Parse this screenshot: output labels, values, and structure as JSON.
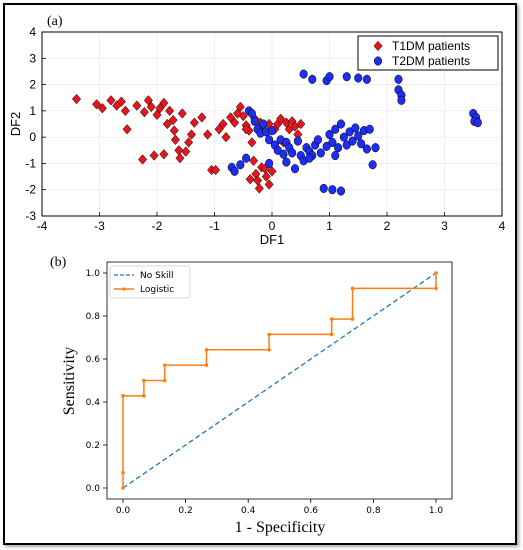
{
  "chart_data": [
    {
      "panel_label": "(a)",
      "type": "scatter",
      "xlabel": "DF1",
      "ylabel": "DF2",
      "xlim": [
        -4,
        4
      ],
      "ylim": [
        -3,
        4
      ],
      "xticks": [
        -4,
        -3,
        -2,
        -1,
        0,
        1,
        2,
        3,
        4
      ],
      "yticks": [
        -3,
        -2,
        -1,
        0,
        1,
        2,
        3,
        4
      ],
      "legend_position": "top-right",
      "series": [
        {
          "name": "T1DM patients",
          "marker": "diamond",
          "color": "#e8141c",
          "points": [
            [
              -3.4,
              1.45
            ],
            [
              -3.05,
              1.25
            ],
            [
              -2.95,
              1.1
            ],
            [
              -2.8,
              1.4
            ],
            [
              -2.7,
              1.2
            ],
            [
              -2.62,
              1.35
            ],
            [
              -2.55,
              1.0
            ],
            [
              -2.52,
              0.3
            ],
            [
              -2.35,
              1.2
            ],
            [
              -2.22,
              0.95
            ],
            [
              -2.15,
              1.4
            ],
            [
              -2.1,
              1.15
            ],
            [
              -2.0,
              0.85
            ],
            [
              -1.95,
              1.1
            ],
            [
              -1.88,
              1.3
            ],
            [
              -1.82,
              0.5
            ],
            [
              -1.78,
              1.0
            ],
            [
              -1.72,
              0.65
            ],
            [
              -1.7,
              0.25
            ],
            [
              -1.68,
              -0.1
            ],
            [
              -1.62,
              -0.5
            ],
            [
              -1.6,
              -0.8
            ],
            [
              -1.56,
              0.9
            ],
            [
              -1.5,
              -0.55
            ],
            [
              -1.45,
              -0.2
            ],
            [
              -1.4,
              0.1
            ],
            [
              -1.88,
              -0.65
            ],
            [
              -2.05,
              -0.7
            ],
            [
              -2.25,
              -0.85
            ],
            [
              -1.35,
              0.55
            ],
            [
              -1.22,
              0.75
            ],
            [
              -1.12,
              0.1
            ],
            [
              -1.05,
              -1.25
            ],
            [
              -0.98,
              -1.25
            ],
            [
              -0.92,
              0.3
            ],
            [
              -0.85,
              0.5
            ],
            [
              -0.8,
              0.0
            ],
            [
              -0.72,
              0.75
            ],
            [
              -0.65,
              0.55
            ],
            [
              -0.6,
              0.9
            ],
            [
              -0.55,
              1.15
            ],
            [
              -0.5,
              0.8
            ],
            [
              -0.45,
              0.45
            ],
            [
              -0.4,
              0.25
            ],
            [
              -0.35,
              -0.2
            ],
            [
              -0.32,
              -0.9
            ],
            [
              -0.3,
              0.7
            ],
            [
              -0.28,
              -1.4
            ],
            [
              -0.25,
              -1.65
            ],
            [
              -0.22,
              -1.95
            ],
            [
              -0.18,
              -1.15
            ],
            [
              -0.15,
              0.45
            ],
            [
              -0.1,
              -1.5
            ],
            [
              -0.05,
              -1.8
            ],
            [
              0.0,
              -1.3
            ],
            [
              0.05,
              0.3
            ],
            [
              0.1,
              0.5
            ],
            [
              0.15,
              0.7
            ],
            [
              0.2,
              -0.2
            ],
            [
              0.25,
              0.55
            ],
            [
              0.3,
              0.3
            ],
            [
              0.35,
              0.6
            ],
            [
              0.4,
              0.4
            ],
            [
              0.45,
              0.1
            ],
            [
              0.5,
              0.5
            ],
            [
              -0.05,
              0.5
            ],
            [
              -0.2,
              0.55
            ],
            [
              -0.45,
              0.3
            ],
            [
              -0.12,
              -1.2
            ],
            [
              -0.38,
              -1.6
            ]
          ]
        },
        {
          "name": "T2DM patients",
          "marker": "circle",
          "color": "#1e2ef0",
          "points": [
            [
              0.55,
              2.4
            ],
            [
              0.7,
              2.2
            ],
            [
              0.95,
              2.15
            ],
            [
              1.0,
              2.3
            ],
            [
              1.3,
              2.3
            ],
            [
              1.5,
              2.25
            ],
            [
              1.65,
              2.2
            ],
            [
              2.2,
              1.8
            ],
            [
              2.25,
              1.6
            ],
            [
              2.25,
              1.4
            ],
            [
              2.2,
              2.2
            ],
            [
              3.5,
              0.9
            ],
            [
              3.55,
              0.75
            ],
            [
              3.52,
              0.6
            ],
            [
              3.58,
              0.55
            ],
            [
              -0.4,
              1.0
            ],
            [
              -0.35,
              0.9
            ],
            [
              -0.3,
              0.6
            ],
            [
              -0.25,
              0.3
            ],
            [
              -0.2,
              0.15
            ],
            [
              -0.15,
              0.5
            ],
            [
              -0.1,
              0.2
            ],
            [
              -0.05,
              -0.1
            ],
            [
              0.0,
              0.25
            ],
            [
              0.05,
              -0.3
            ],
            [
              0.1,
              -0.5
            ],
            [
              0.15,
              -0.1
            ],
            [
              0.2,
              -0.65
            ],
            [
              0.25,
              -0.2
            ],
            [
              0.3,
              -0.4
            ],
            [
              0.35,
              -0.6
            ],
            [
              0.4,
              -1.2
            ],
            [
              0.45,
              -0.15
            ],
            [
              0.5,
              -0.7
            ],
            [
              0.55,
              -0.9
            ],
            [
              0.6,
              -0.4
            ],
            [
              0.65,
              -0.55
            ],
            [
              0.7,
              -0.7
            ],
            [
              0.75,
              -0.3
            ],
            [
              0.8,
              -0.1
            ],
            [
              0.85,
              -0.6
            ],
            [
              0.9,
              -1.95
            ],
            [
              0.95,
              -0.35
            ],
            [
              1.0,
              0.1
            ],
            [
              1.05,
              -0.2
            ],
            [
              1.1,
              0.3
            ],
            [
              1.15,
              -0.4
            ],
            [
              1.2,
              0.5
            ],
            [
              1.25,
              0.0
            ],
            [
              1.3,
              -0.3
            ],
            [
              1.35,
              0.2
            ],
            [
              1.4,
              -0.15
            ],
            [
              1.45,
              0.35
            ],
            [
              1.5,
              0.05
            ],
            [
              1.55,
              -0.25
            ],
            [
              1.6,
              0.25
            ],
            [
              1.65,
              -0.45
            ],
            [
              1.7,
              0.3
            ],
            [
              1.75,
              -1.05
            ],
            [
              1.8,
              -0.4
            ],
            [
              -0.7,
              -1.15
            ],
            [
              -0.65,
              -1.3
            ],
            [
              -0.55,
              -1.05
            ],
            [
              -0.45,
              -0.8
            ],
            [
              -0.05,
              -1.0
            ],
            [
              1.05,
              -2.0
            ],
            [
              1.2,
              -2.05
            ],
            [
              0.65,
              -0.8
            ],
            [
              0.25,
              -0.95
            ],
            [
              1.1,
              -0.7
            ]
          ]
        }
      ]
    },
    {
      "panel_label": "(b)",
      "type": "line",
      "xlabel": "1 - Specificity",
      "ylabel": "Sensitivity",
      "xlim": [
        0,
        1
      ],
      "ylim": [
        0,
        1
      ],
      "xticks": [
        "0.0",
        "0.2",
        "0.4",
        "0.6",
        "0.8",
        "1.0"
      ],
      "yticks": [
        "0.0",
        "0.2",
        "0.4",
        "0.6",
        "0.8",
        "1.0"
      ],
      "legend_position": "top-left",
      "series": [
        {
          "name": "No Skill",
          "style": "dashed",
          "color": "#1f77b4",
          "x": [
            0,
            1
          ],
          "y": [
            0,
            1
          ]
        },
        {
          "name": "Logistic",
          "style": "solid",
          "marker": "dot",
          "color": "#ff7f0e",
          "x": [
            0.0,
            0.0,
            0.0,
            0.0667,
            0.0667,
            0.1333,
            0.1333,
            0.2667,
            0.2667,
            0.4667,
            0.4667,
            0.6667,
            0.6667,
            0.7333,
            0.7333,
            1.0,
            1.0
          ],
          "y": [
            0.0,
            0.0714,
            0.4286,
            0.4286,
            0.5,
            0.5,
            0.5714,
            0.5714,
            0.6429,
            0.6429,
            0.7143,
            0.7143,
            0.7857,
            0.7857,
            0.9286,
            0.9286,
            1.0
          ]
        }
      ]
    }
  ]
}
